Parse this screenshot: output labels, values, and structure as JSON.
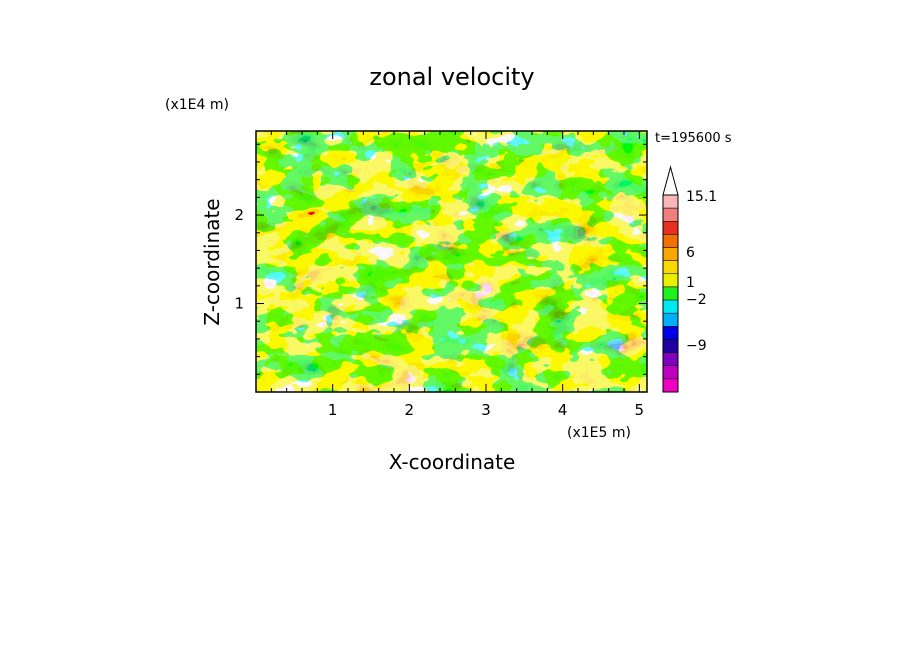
{
  "chart_data": {
    "type": "heatmap",
    "title": "zonal velocity",
    "xlabel": "X-coordinate",
    "ylabel": "Z-coordinate",
    "x_unit": "(x1E5 m)",
    "y_unit": "(x1E4 m)",
    "time_label": "t=195600 s",
    "xlim": [
      0,
      5.1
    ],
    "ylim": [
      0,
      2.95
    ],
    "x_ticks": [
      1,
      2,
      3,
      4,
      5
    ],
    "y_ticks": [
      1,
      2
    ],
    "x_tick_labels": [
      "1",
      "2",
      "3",
      "4",
      "5"
    ],
    "y_tick_labels": [
      "1",
      "2"
    ],
    "colorbar": {
      "labels": [
        "15.1",
        "6",
        "1",
        "−2",
        "−9"
      ],
      "bands_top_to_bottom": [
        "#f7b7b7",
        "#f08080",
        "#e83020",
        "#f07000",
        "#f8a800",
        "#f8d800",
        "#e8f000",
        "#20f020",
        "#00e8f0",
        "#00b0f8",
        "#0000e8",
        "#2000a0",
        "#8000c0",
        "#c000c0",
        "#f000c0"
      ]
    },
    "colors": {
      "strong_positive": "#e83020",
      "positive": "#f8d800",
      "near_zero": "#20f020",
      "negative": "#00e8f0",
      "strong_negative": "#0000e8"
    }
  }
}
